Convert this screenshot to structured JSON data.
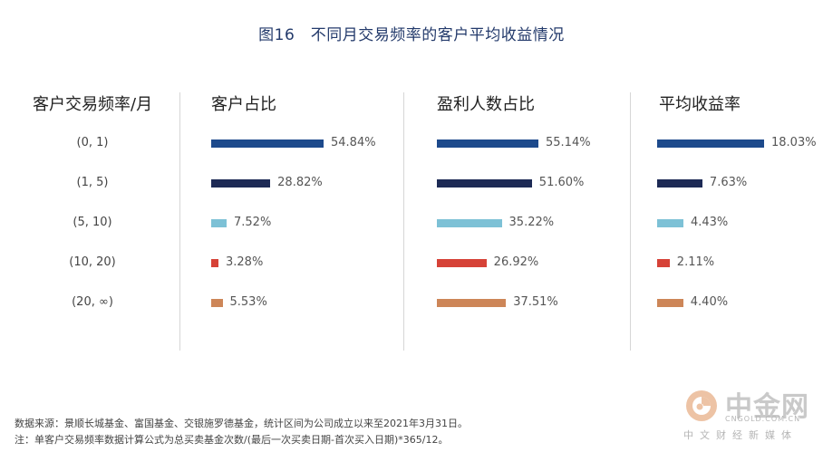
{
  "chart_data": {
    "type": "bar",
    "title": "图16　不同月交易频率的客户平均收益情况",
    "category_header": "客户交易频率/月",
    "categories": [
      "(0, 1)",
      "(1, 5)",
      "(5, 10)",
      "(10, 20)",
      "(20, ∞)"
    ],
    "colors": [
      "#1d4a8c",
      "#1d2a55",
      "#7dc1d6",
      "#d64237",
      "#cd8658"
    ],
    "series": [
      {
        "name": "客户占比",
        "values": [
          54.84,
          28.82,
          7.52,
          3.28,
          5.53
        ],
        "labels": [
          "54.84%",
          "28.82%",
          "7.52%",
          "3.28%",
          "5.53%"
        ]
      },
      {
        "name": "盈利人数占比",
        "values": [
          55.14,
          51.6,
          35.22,
          26.92,
          37.51
        ],
        "labels": [
          "55.14%",
          "51.60%",
          "35.22%",
          "26.92%",
          "37.51%"
        ]
      },
      {
        "name": "平均收益率",
        "values": [
          18.03,
          7.63,
          4.43,
          2.11,
          4.4
        ],
        "labels": [
          "18.03%",
          "7.63%",
          "4.43%",
          "2.11%",
          "4.40%"
        ]
      }
    ],
    "source_note": "数据来源：景顺长城基金、富国基金、交银施罗德基金，统计区间为公司成立以来至2021年3月31日。",
    "formula_note": "注：单客户交易频率数据计算公式为总买卖基金次数/(最后一次买卖日期-首次买入日期)*365/12。"
  },
  "watermark": {
    "name": "中金网",
    "domain": "CNGOLD.COM.CN",
    "tagline": "中文财经新媒体"
  }
}
